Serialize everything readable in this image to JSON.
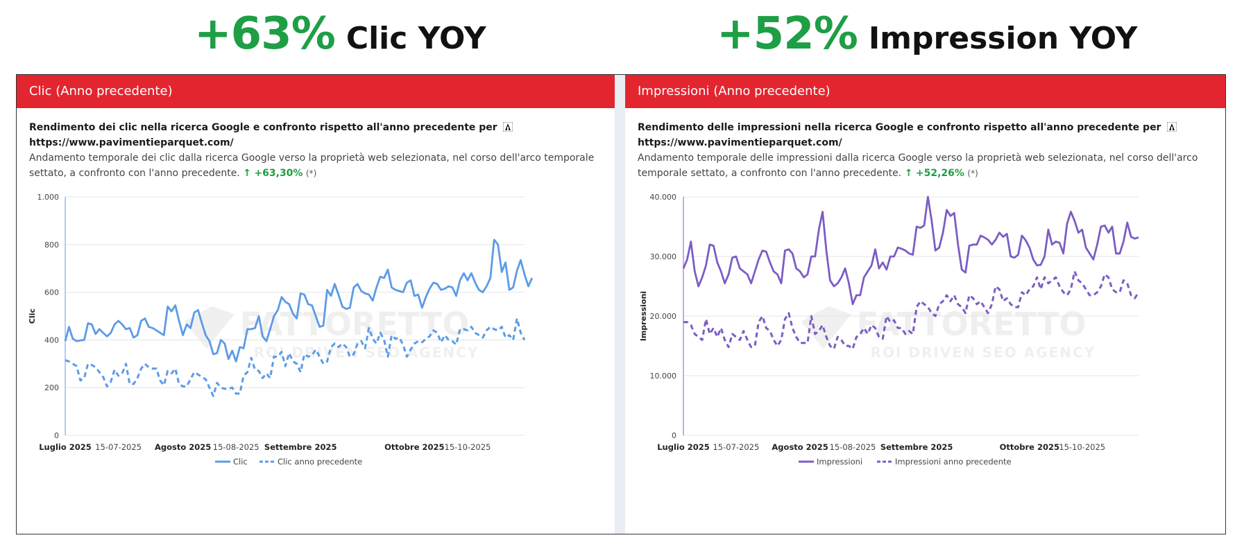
{
  "headlines": {
    "left": {
      "pct": "+63%",
      "label": "Clic YOY"
    },
    "right": {
      "pct": "+52%",
      "label": "Impression YOY"
    }
  },
  "colors": {
    "green": "#1e9e45",
    "header_red": "#e3252f",
    "clic_blue": "#5b9be6",
    "impr_purple": "#7c5cc4"
  },
  "panels": [
    {
      "header": "Clic (Anno precedente)",
      "title": "Rendimento dei clic nella ricerca Google e confronto rispetto all'anno precedente per",
      "url": "https://www.pavimentieparquet.com/",
      "desc_text": "Andamento temporale dei clic dalla ricerca Google verso la proprietà web selezionata, nel corso dell'arco temporale settato, a confronto con l'anno precedente.",
      "arrow": "↑",
      "delta": "+63,30%",
      "asterisk": "(*)"
    },
    {
      "header": "Impressioni (Anno precedente)",
      "title": "Rendimento delle impressioni nella ricerca Google e confronto rispetto all'anno precedente per",
      "url": "https://www.pavimentieparquet.com/",
      "desc_text": "Andamento temporale delle impressioni dalla ricerca Google verso la proprietà web selezionata, nel corso dell'arco temporale settato, a confronto con l'anno precedente.",
      "arrow": "↑",
      "delta": "+52,26%",
      "asterisk": "(*)"
    }
  ],
  "watermark": {
    "brand": "FATTORETTO",
    "tagline": "ROI DRIVEN SEO AGENCY"
  },
  "chart_data": [
    {
      "type": "line",
      "ylabel": "Clic",
      "xlabel": "",
      "ylim": [
        0,
        1000
      ],
      "yticks": [
        0,
        200,
        400,
        600,
        800,
        1000
      ],
      "ytick_labels": [
        "0",
        "200",
        "400",
        "600",
        "800",
        "1.000"
      ],
      "x_days": 122,
      "x_ticks": [
        {
          "day": 0,
          "label": "Luglio 2025",
          "major": true
        },
        {
          "day": 14,
          "label": "15-07-2025",
          "major": false
        },
        {
          "day": 31,
          "label": "Agosto 2025",
          "major": true
        },
        {
          "day": 45,
          "label": "15-08-2025",
          "major": false
        },
        {
          "day": 62,
          "label": "Settembre 2025",
          "major": true
        },
        {
          "day": 92,
          "label": "Ottobre 2025",
          "major": true
        },
        {
          "day": 106,
          "label": "15-10-2025",
          "major": false
        }
      ],
      "legend": [
        "Clic",
        "Clic anno precedente"
      ],
      "series": [
        {
          "name": "Clic",
          "style": "solid",
          "color": "#5b9be6",
          "values": [
            395,
            455,
            405,
            395,
            398,
            400,
            470,
            465,
            425,
            445,
            430,
            415,
            430,
            465,
            480,
            465,
            445,
            450,
            410,
            420,
            480,
            490,
            455,
            450,
            440,
            430,
            420,
            540,
            520,
            545,
            480,
            420,
            465,
            450,
            515,
            525,
            470,
            420,
            395,
            340,
            345,
            400,
            385,
            320,
            355,
            310,
            370,
            365,
            445,
            445,
            450,
            500,
            415,
            395,
            445,
            500,
            525,
            580,
            560,
            550,
            510,
            490,
            595,
            590,
            550,
            545,
            500,
            455,
            460,
            610,
            585,
            635,
            590,
            540,
            530,
            535,
            620,
            635,
            605,
            595,
            590,
            565,
            620,
            665,
            660,
            695,
            620,
            610,
            605,
            600,
            640,
            650,
            585,
            590,
            535,
            580,
            615,
            640,
            635,
            610,
            615,
            625,
            620,
            585,
            650,
            680,
            650,
            680,
            640,
            610,
            600,
            625,
            660,
            820,
            800,
            685,
            725,
            610,
            620,
            690,
            735,
            675,
            625,
            660
          ]
        },
        {
          "name": "Clic anno precedente",
          "style": "dashed",
          "color": "#5b9be6",
          "values": [
            315,
            310,
            300,
            290,
            230,
            240,
            300,
            295,
            285,
            265,
            245,
            205,
            225,
            275,
            250,
            260,
            300,
            215,
            215,
            240,
            280,
            300,
            285,
            280,
            280,
            230,
            210,
            270,
            260,
            280,
            215,
            205,
            205,
            235,
            265,
            255,
            245,
            235,
            200,
            165,
            220,
            200,
            195,
            195,
            200,
            175,
            175,
            250,
            265,
            325,
            275,
            270,
            240,
            260,
            240,
            330,
            330,
            350,
            290,
            345,
            310,
            300,
            265,
            340,
            330,
            335,
            360,
            330,
            300,
            310,
            370,
            385,
            370,
            385,
            370,
            330,
            340,
            385,
            395,
            365,
            450,
            405,
            385,
            430,
            400,
            330,
            420,
            405,
            410,
            380,
            330,
            360,
            385,
            395,
            390,
            405,
            415,
            440,
            430,
            390,
            420,
            400,
            395,
            380,
            445,
            445,
            440,
            455,
            430,
            420,
            410,
            440,
            455,
            445,
            440,
            455,
            410,
            420,
            400,
            490,
            430,
            400
          ]
        }
      ]
    },
    {
      "type": "line",
      "ylabel": "Impressioni",
      "xlabel": "",
      "ylim": [
        0,
        40000
      ],
      "yticks": [
        0,
        10000,
        20000,
        30000,
        40000
      ],
      "ytick_labels": [
        "0",
        "10.000",
        "20.000",
        "30.000",
        "40.000"
      ],
      "x_days": 122,
      "x_ticks": [
        {
          "day": 0,
          "label": "Luglio 2025",
          "major": true
        },
        {
          "day": 14,
          "label": "15-07-2025",
          "major": false
        },
        {
          "day": 31,
          "label": "Agosto 2025",
          "major": true
        },
        {
          "day": 45,
          "label": "15-08-2025",
          "major": false
        },
        {
          "day": 62,
          "label": "Settembre 2025",
          "major": true
        },
        {
          "day": 92,
          "label": "Ottobre 2025",
          "major": true
        },
        {
          "day": 106,
          "label": "15-10-2025",
          "major": false
        }
      ],
      "legend": [
        "Impressioni",
        "Impressioni anno precedente"
      ],
      "series": [
        {
          "name": "Impressioni",
          "style": "solid",
          "color": "#7c5cc4",
          "values": [
            28000,
            29500,
            32500,
            27500,
            25000,
            26500,
            28500,
            32000,
            31800,
            29000,
            27500,
            25500,
            27000,
            29800,
            30000,
            28000,
            27500,
            27000,
            25500,
            27500,
            29500,
            31000,
            30800,
            29000,
            27500,
            27000,
            25500,
            31000,
            31200,
            30500,
            28000,
            27500,
            26500,
            27000,
            30000,
            30000,
            34500,
            37500,
            31000,
            26000,
            25000,
            25500,
            26500,
            28000,
            25500,
            22000,
            23500,
            23500,
            26500,
            27500,
            28500,
            31200,
            28000,
            29000,
            27800,
            30000,
            30000,
            31500,
            31300,
            31000,
            30500,
            30300,
            35000,
            34800,
            35200,
            40000,
            36000,
            31000,
            31500,
            34000,
            37800,
            36800,
            37300,
            32000,
            27800,
            27300,
            31800,
            32000,
            32000,
            33500,
            33200,
            32800,
            32000,
            32800,
            34000,
            33300,
            33800,
            30000,
            29800,
            30300,
            33500,
            32700,
            31500,
            29500,
            28500,
            28600,
            30000,
            34500,
            32000,
            32500,
            32300,
            30500,
            35500,
            37500,
            36000,
            34000,
            34500,
            31500,
            30500,
            29500,
            32000,
            35000,
            35200,
            34000,
            35000,
            30500,
            30500,
            32500,
            35700,
            33300,
            33000,
            33200
          ]
        },
        {
          "name": "Impressioni anno precedente",
          "style": "dashed",
          "color": "#7c5cc4",
          "values": [
            19000,
            19000,
            18500,
            17000,
            16500,
            16000,
            19500,
            17000,
            18000,
            16500,
            18000,
            16000,
            14800,
            17000,
            16500,
            16000,
            17500,
            16000,
            14800,
            15000,
            19000,
            20000,
            18000,
            17500,
            16000,
            15000,
            16000,
            19500,
            20500,
            18000,
            16500,
            15500,
            15500,
            15500,
            20000,
            17000,
            17500,
            18500,
            16500,
            15000,
            14500,
            16500,
            16000,
            15000,
            15000,
            14500,
            16500,
            17000,
            18000,
            17000,
            18500,
            18000,
            16500,
            16200,
            20000,
            19000,
            19300,
            18000,
            18000,
            17000,
            17500,
            17000,
            21500,
            22500,
            22000,
            21500,
            20500,
            20000,
            22000,
            22500,
            23500,
            22500,
            23500,
            22000,
            21500,
            20500,
            23500,
            23000,
            22000,
            22500,
            21500,
            20500,
            22000,
            25000,
            24500,
            22500,
            23000,
            22000,
            21500,
            21500,
            24000,
            23500,
            24500,
            25000,
            26500,
            24500,
            26500,
            25500,
            26000,
            26500,
            25000,
            24000,
            23500,
            24500,
            27500,
            26000,
            25500,
            24500,
            23500,
            23500,
            24000,
            25000,
            27000,
            26500,
            24500,
            24000,
            24000,
            26000,
            25500,
            23500,
            23000,
            24000
          ]
        }
      ]
    }
  ]
}
